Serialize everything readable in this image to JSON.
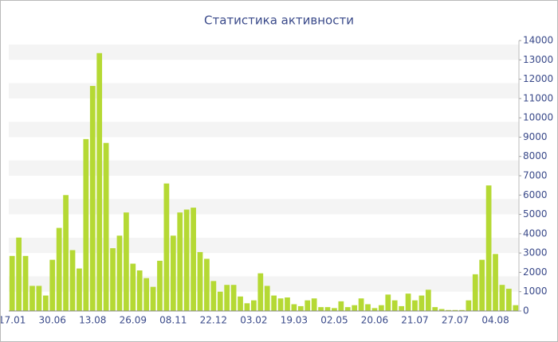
{
  "chart_data": {
    "type": "bar",
    "title": "Статистика активности",
    "categories": [
      "17.01",
      null,
      null,
      null,
      null,
      null,
      "30.06",
      null,
      null,
      null,
      null,
      null,
      "13.08",
      null,
      null,
      null,
      null,
      null,
      "26.09",
      null,
      null,
      null,
      null,
      null,
      "08.11",
      null,
      null,
      null,
      null,
      null,
      "22.12",
      null,
      null,
      null,
      null,
      null,
      "03.02",
      null,
      null,
      null,
      null,
      null,
      "19.03",
      null,
      null,
      null,
      null,
      null,
      "02.05",
      null,
      null,
      null,
      null,
      null,
      "20.06",
      null,
      null,
      null,
      null,
      null,
      "21.07",
      null,
      null,
      null,
      null,
      null,
      "27.07",
      null,
      null,
      null,
      null,
      null,
      "04.08",
      null,
      null,
      null
    ],
    "values": [
      2850,
      3800,
      2850,
      1300,
      1300,
      800,
      2650,
      4300,
      6000,
      3150,
      2200,
      8900,
      11650,
      13350,
      8700,
      3250,
      3900,
      5100,
      2450,
      2100,
      1700,
      1250,
      2600,
      6600,
      3900,
      5100,
      5250,
      5350,
      3050,
      2700,
      1550,
      1000,
      1350,
      1350,
      750,
      400,
      550,
      1950,
      1300,
      800,
      650,
      700,
      350,
      250,
      550,
      650,
      200,
      200,
      150,
      500,
      200,
      300,
      650,
      350,
      150,
      300,
      850,
      550,
      250,
      900,
      550,
      800,
      1100,
      200,
      100,
      50,
      50,
      50,
      550,
      1900,
      2650,
      6500,
      2950,
      1350,
      1150,
      300
    ],
    "color": "#b5d934",
    "ylim": [
      0,
      14000
    ],
    "yticks": [
      0,
      1000,
      2000,
      3000,
      4000,
      5000,
      6000,
      7000,
      8000,
      9000,
      10000,
      11000,
      12000,
      13000,
      14000
    ],
    "grid": true
  }
}
